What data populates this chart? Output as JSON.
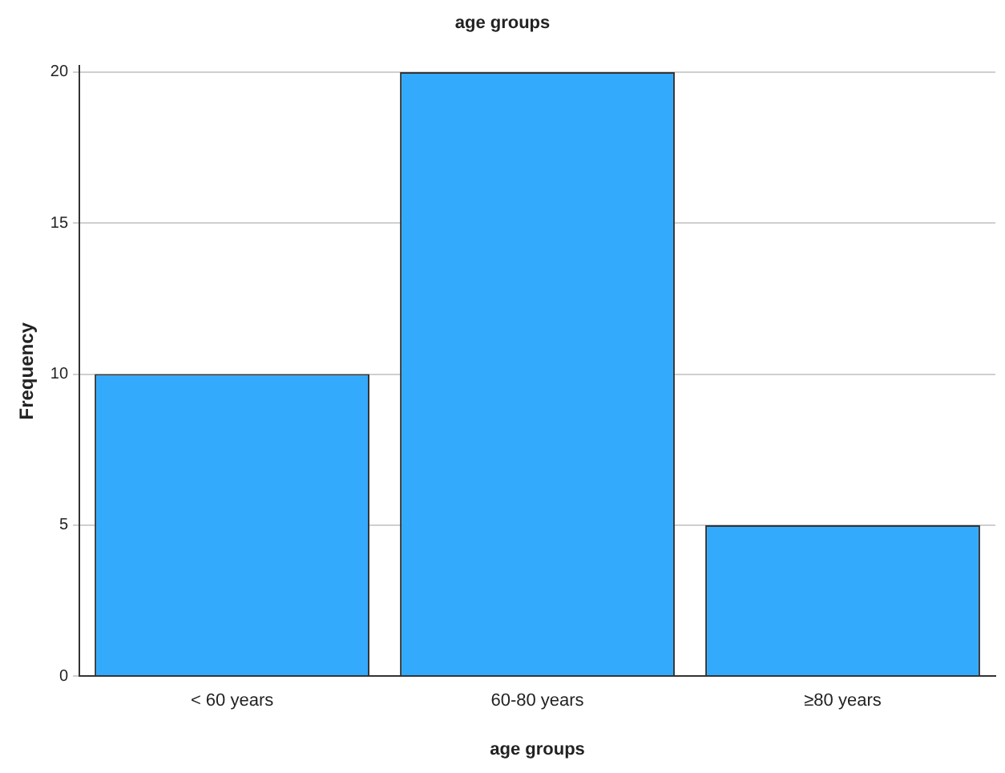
{
  "chart_data": {
    "type": "bar",
    "title": "age groups",
    "xlabel": "age groups",
    "ylabel": "Frequency",
    "categories": [
      "< 60 years",
      "60-80 years",
      "≥80 years"
    ],
    "values": [
      10,
      20,
      5
    ],
    "color": "#33aafc",
    "ylim": [
      0,
      20.2
    ],
    "yticks": [
      0,
      5,
      10,
      15,
      20
    ],
    "grid": "y",
    "legend": false
  }
}
